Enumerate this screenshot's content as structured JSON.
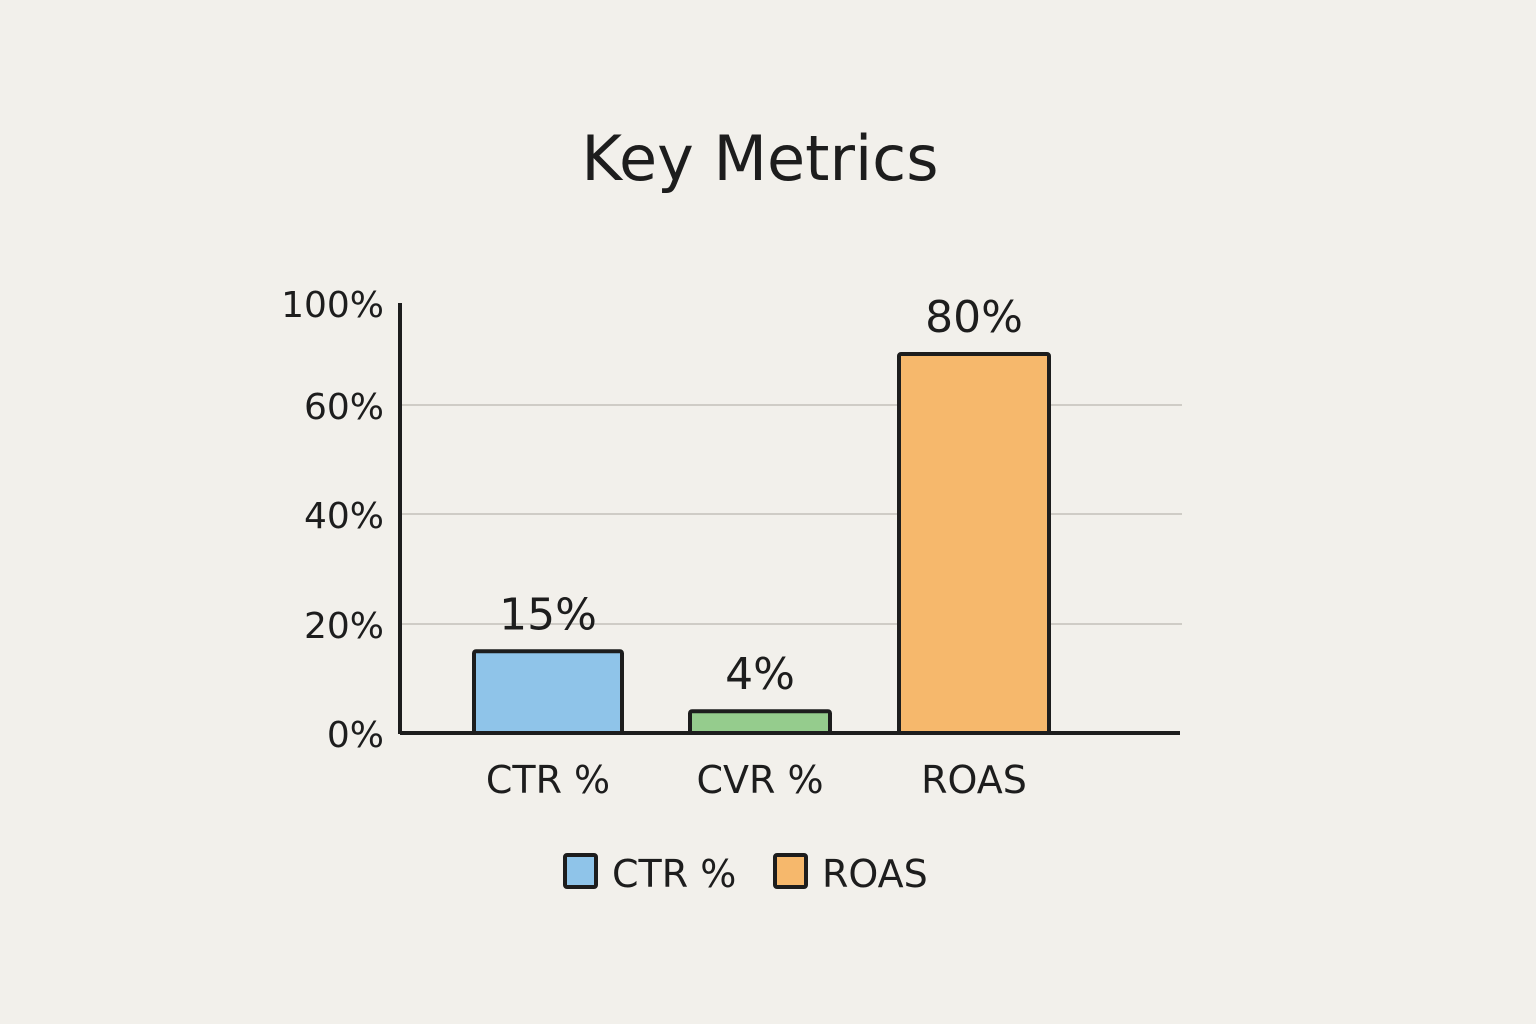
{
  "chart_data": {
    "type": "bar",
    "title": "Key Metrics",
    "xlabel": "",
    "ylabel": "",
    "categories": [
      "CTR %",
      "CVR %",
      "ROAS"
    ],
    "values": [
      15,
      4,
      80
    ],
    "value_labels": [
      "15%",
      "4%",
      "80%"
    ],
    "colors": [
      "#8fc4e9",
      "#95cc8d",
      "#f6b86c"
    ],
    "ylim": [
      0,
      100
    ],
    "yticks": [
      0,
      20,
      40,
      60,
      100
    ],
    "ytick_labels": [
      "0%",
      "20%",
      "40%",
      "60%",
      "100%"
    ],
    "grid": true,
    "legend": {
      "placement": "bottom-center",
      "entries": [
        {
          "label": "CTR %",
          "color": "#8fc4e9"
        },
        {
          "label": "ROAS",
          "color": "#f6b86c"
        }
      ]
    }
  }
}
